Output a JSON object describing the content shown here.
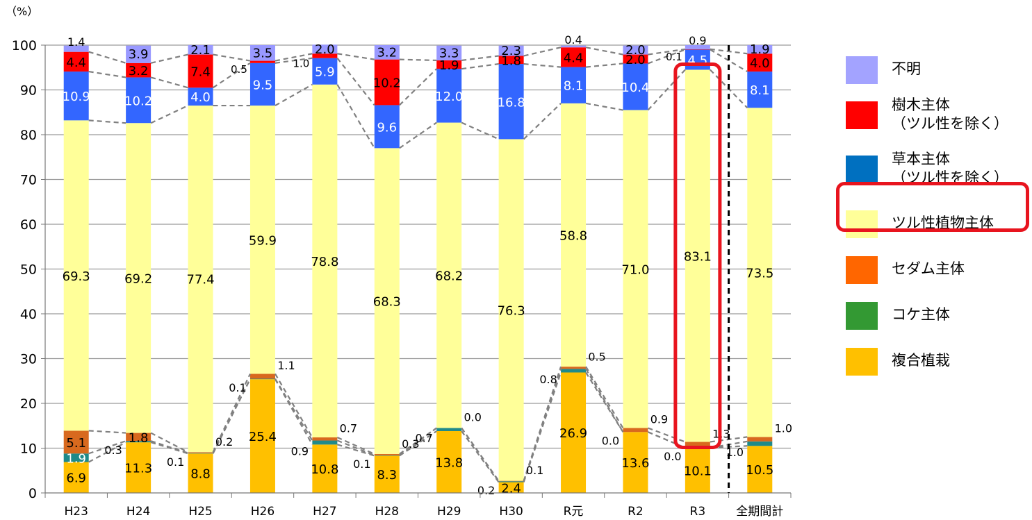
{
  "chart_data": {
    "type": "bar",
    "stacked": true,
    "y_unit": "（%）",
    "ylim": [
      0,
      100
    ],
    "yticks": [
      0,
      10,
      20,
      30,
      40,
      50,
      60,
      70,
      80,
      90,
      100
    ],
    "grid": true,
    "legend_position": "right",
    "categories": [
      "H23",
      "H24",
      "H25",
      "H26",
      "H27",
      "H28",
      "H29",
      "H30",
      "R元",
      "R2",
      "R3",
      "全期間計"
    ],
    "series": [
      {
        "name": "複合植栽",
        "color": "#ffc000",
        "values": [
          6.9,
          11.3,
          8.8,
          25.4,
          10.8,
          8.3,
          13.8,
          2.4,
          26.9,
          13.6,
          10.1,
          10.5
        ],
        "labels": [
          "6.9",
          "11.3",
          "8.8",
          "25.4",
          "10.8",
          "8.3",
          "13.8",
          "2.4",
          "26.9",
          "13.6",
          "10.1",
          "10.5"
        ]
      },
      {
        "name": "コケ主体",
        "color": "#1f8a8a",
        "values": [
          1.9,
          0.3,
          0.1,
          0.1,
          0.9,
          0.1,
          0.7,
          0.2,
          0.8,
          0.0,
          0.0,
          1.0
        ],
        "labels": [
          "1.9",
          "0.3",
          "0.1",
          "0.1",
          "0.9",
          "0.1",
          "0.7",
          "0.2",
          "0.8",
          "0.0",
          "0.0",
          "1.0"
        ]
      },
      {
        "name": "セダム主体",
        "color": "#d8691e",
        "values": [
          5.1,
          1.8,
          0.2,
          1.1,
          0.7,
          0.3,
          0.0,
          0.1,
          0.5,
          0.9,
          1.3,
          1.0
        ],
        "labels": [
          "5.1",
          "1.8",
          "0.2",
          "1.1",
          "0.7",
          "0.3",
          "0.0",
          "0.1",
          "0.5",
          "0.9",
          "1.3",
          "1.0"
        ]
      },
      {
        "name": "ツル性植物主体",
        "color": "#ffff99",
        "values": [
          69.3,
          69.2,
          77.4,
          59.9,
          78.8,
          68.3,
          68.2,
          76.3,
          58.8,
          71.0,
          83.1,
          73.5
        ],
        "labels": [
          "69.3",
          "69.2",
          "77.4",
          "59.9",
          "78.8",
          "68.3",
          "68.2",
          "76.3",
          "58.8",
          "71.0",
          "83.1",
          "73.5"
        ]
      },
      {
        "name": "草本主体（ツル性を除く）",
        "color": "#3366ff",
        "values": [
          10.9,
          10.2,
          4.0,
          9.5,
          5.9,
          9.6,
          12.0,
          16.8,
          8.1,
          10.4,
          4.5,
          8.1
        ],
        "labels": [
          "10.9",
          "10.2",
          "4.0",
          "9.5",
          "5.9",
          "9.6",
          "12.0",
          "16.8",
          "8.1",
          "10.4",
          "4.5",
          "8.1"
        ]
      },
      {
        "name": "樹木主体（ツル性を除く）",
        "color": "#ff0000",
        "values": [
          4.4,
          3.2,
          7.4,
          0.5,
          1.0,
          10.2,
          1.9,
          1.8,
          4.4,
          2.0,
          0.1,
          4.0
        ],
        "labels": [
          "4.4",
          "3.2",
          "7.4",
          "0.5",
          "1.0",
          "10.2",
          "1.9",
          "1.8",
          "4.4",
          "2.0",
          "0.1",
          "4.0"
        ]
      },
      {
        "name": "不明",
        "color": "#9999ff",
        "values": [
          1.4,
          3.9,
          2.1,
          3.5,
          2.0,
          3.2,
          3.3,
          2.3,
          0.4,
          2.0,
          0.9,
          1.9
        ],
        "labels": [
          "1.4",
          "3.9",
          "2.1",
          "3.5",
          "2.0",
          "3.2",
          "3.3",
          "2.3",
          "0.4",
          "2.0",
          "0.9",
          "1.9"
        ]
      }
    ],
    "highlighted_category": "R3",
    "highlighted_series": "ツル性植物主体",
    "divider_before_category": "全期間計"
  },
  "legend": {
    "items": [
      {
        "label": "不明",
        "color": "#a3a3ff"
      },
      {
        "label": "樹木主体\n（ツル性を除く）",
        "color": "#ff0000"
      },
      {
        "label": "草本主体\n（ツル性を除く）",
        "color": "#0070c0"
      },
      {
        "label": "ツル性植物主体",
        "color": "#ffff99"
      },
      {
        "label": "セダム主体",
        "color": "#ff6600"
      },
      {
        "label": "コケ主体",
        "color": "#339933"
      },
      {
        "label": "複合植栽",
        "color": "#ffc000"
      }
    ]
  },
  "colors": {
    "highlight": "#e8141e",
    "connector": "#808080"
  }
}
